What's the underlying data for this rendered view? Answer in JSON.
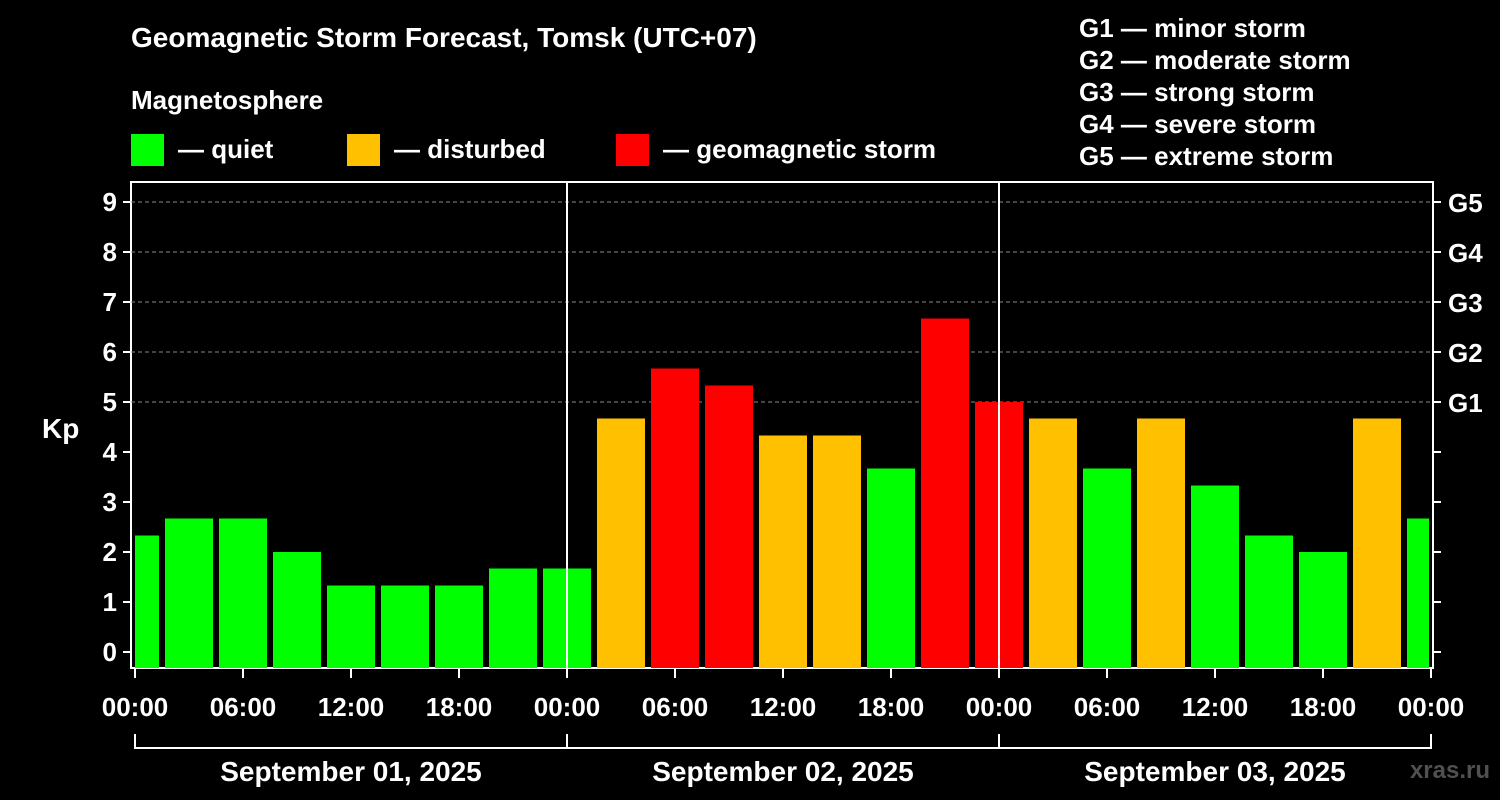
{
  "title": "Geomagnetic Storm Forecast, Tomsk (UTC+07)",
  "magnetosphere_heading": "Magnetosphere",
  "legend": [
    {
      "label": "— quiet",
      "color": "#00ff00"
    },
    {
      "label": "— disturbed",
      "color": "#ffc000"
    },
    {
      "label": "— geomagnetic storm",
      "color": "#ff0000"
    }
  ],
  "g_legend": [
    "G1 — minor storm",
    "G2 — moderate storm",
    "G3 — strong storm",
    "G4 — severe storm",
    "G5 — extreme storm"
  ],
  "watermark": "xras.ru",
  "chart_data": {
    "type": "bar",
    "ylabel": "Kp",
    "ylim": [
      0,
      9
    ],
    "yticks": [
      "0",
      "1",
      "2",
      "3",
      "4",
      "5",
      "6",
      "7",
      "8",
      "9"
    ],
    "g_scale_labels": [
      {
        "kp": 5,
        "label": "G1"
      },
      {
        "kp": 6,
        "label": "G2"
      },
      {
        "kp": 7,
        "label": "G3"
      },
      {
        "kp": 8,
        "label": "G4"
      },
      {
        "kp": 9,
        "label": "G5"
      }
    ],
    "grid": "dashed horizontal at Kp 5 to 9",
    "x_tick_labels": [
      "00:00",
      "06:00",
      "12:00",
      "18:00",
      "00:00",
      "06:00",
      "12:00",
      "18:00",
      "00:00",
      "06:00",
      "12:00",
      "18:00",
      "00:00"
    ],
    "days": [
      "September 01, 2025",
      "September 02, 2025",
      "September 03, 2025"
    ],
    "bars": [
      {
        "time": "September 01, 2025 00:00",
        "kp": 2.33,
        "status": "quiet"
      },
      {
        "time": "September 01, 2025 03:00",
        "kp": 2.67,
        "status": "quiet"
      },
      {
        "time": "September 01, 2025 06:00",
        "kp": 2.67,
        "status": "quiet"
      },
      {
        "time": "September 01, 2025 09:00",
        "kp": 2.0,
        "status": "quiet"
      },
      {
        "time": "September 01, 2025 12:00",
        "kp": 1.33,
        "status": "quiet"
      },
      {
        "time": "September 01, 2025 15:00",
        "kp": 1.33,
        "status": "quiet"
      },
      {
        "time": "September 01, 2025 18:00",
        "kp": 1.33,
        "status": "quiet"
      },
      {
        "time": "September 01, 2025 21:00",
        "kp": 1.67,
        "status": "quiet"
      },
      {
        "time": "September 02, 2025 00:00",
        "kp": 1.67,
        "status": "quiet"
      },
      {
        "time": "September 02, 2025 03:00",
        "kp": 4.67,
        "status": "disturbed"
      },
      {
        "time": "September 02, 2025 06:00",
        "kp": 5.67,
        "status": "storm"
      },
      {
        "time": "September 02, 2025 09:00",
        "kp": 5.33,
        "status": "storm"
      },
      {
        "time": "September 02, 2025 12:00",
        "kp": 4.33,
        "status": "disturbed"
      },
      {
        "time": "September 02, 2025 15:00",
        "kp": 4.33,
        "status": "disturbed"
      },
      {
        "time": "September 02, 2025 18:00",
        "kp": 3.67,
        "status": "quiet"
      },
      {
        "time": "September 02, 2025 21:00",
        "kp": 6.67,
        "status": "storm"
      },
      {
        "time": "September 03, 2025 00:00",
        "kp": 5.0,
        "status": "storm"
      },
      {
        "time": "September 03, 2025 03:00",
        "kp": 4.67,
        "status": "disturbed"
      },
      {
        "time": "September 03, 2025 06:00",
        "kp": 3.67,
        "status": "quiet"
      },
      {
        "time": "September 03, 2025 09:00",
        "kp": 4.67,
        "status": "disturbed"
      },
      {
        "time": "September 03, 2025 12:00",
        "kp": 3.33,
        "status": "quiet"
      },
      {
        "time": "September 03, 2025 15:00",
        "kp": 2.33,
        "status": "quiet"
      },
      {
        "time": "September 03, 2025 18:00",
        "kp": 2.0,
        "status": "quiet"
      },
      {
        "time": "September 03, 2025 21:00",
        "kp": 4.67,
        "status": "disturbed"
      },
      {
        "time": "September 04, 2025 00:00",
        "kp": 2.67,
        "status": "quiet"
      }
    ],
    "status_colors": {
      "quiet": "#00ff00",
      "disturbed": "#ffc000",
      "storm": "#ff0000"
    }
  }
}
